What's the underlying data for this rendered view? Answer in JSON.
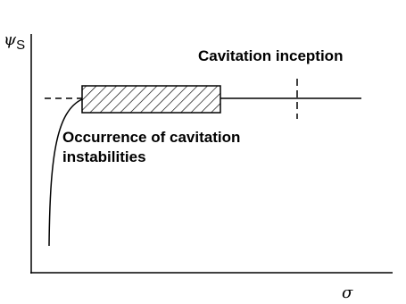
{
  "y_axis_label": {
    "symbol": "ψ",
    "subscript": "S"
  },
  "x_axis_label": "σ",
  "annotations": {
    "inception": "Cavitation inception",
    "instabilities": [
      "Occurrence of cavitation",
      "instabilities"
    ]
  }
}
